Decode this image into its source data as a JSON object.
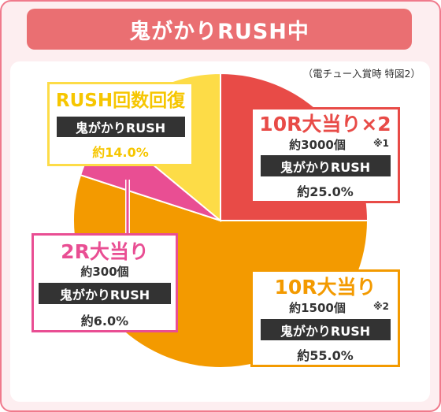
{
  "header": {
    "title": "鬼がかりRUSH中"
  },
  "footnote": "（電チュー入賞時 特図2）",
  "colors": {
    "red": "#e84b47",
    "orange": "#f39a00",
    "pink": "#e94e93",
    "yellow": "#fddc47",
    "frame": "#f07a8c",
    "header_bg": "#ea6f72"
  },
  "chart_data": {
    "type": "pie",
    "title": "",
    "slices": [
      {
        "label": "10R大当り×2",
        "rounds_payout": "約3000個",
        "note": "※1",
        "result": "鬼がかりRUSH",
        "percent_label": "約25.0%",
        "value": 25.0,
        "color": "#e84b47"
      },
      {
        "label": "10R大当り",
        "rounds_payout": "約1500個",
        "note": "※2",
        "result": "鬼がかりRUSH",
        "percent_label": "約55.0%",
        "value": 55.0,
        "color": "#f39a00"
      },
      {
        "label": "2R大当り",
        "rounds_payout": "約300個",
        "note": "",
        "result": "鬼がかりRUSH",
        "percent_label": "約6.0%",
        "value": 6.0,
        "color": "#e94e93"
      },
      {
        "label": "RUSH回数回復",
        "rounds_payout": "",
        "note": "",
        "result": "鬼がかりRUSH",
        "percent_label": "約14.0%",
        "value": 14.0,
        "color": "#fddc47"
      }
    ]
  }
}
